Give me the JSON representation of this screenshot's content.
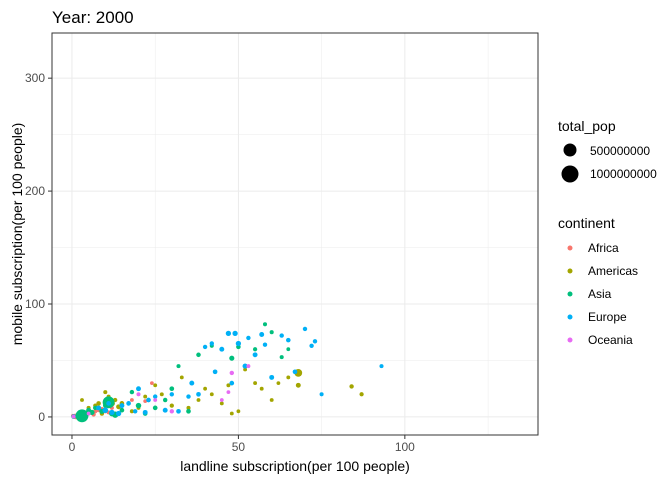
{
  "chart_data": {
    "type": "scatter",
    "title": "Year: 2000",
    "xlabel": "landline subscription(per 100 people)",
    "ylabel": "mobile subscription(per 100 people)",
    "xlim": [
      -6,
      140
    ],
    "ylim": [
      -16,
      340
    ],
    "xticks": [
      0,
      50,
      100
    ],
    "yticks": [
      0,
      100,
      200,
      300
    ],
    "grid": true,
    "legend_position": "right",
    "size_legend": {
      "title": "total_pop",
      "entries": [
        {
          "label": "500000000",
          "value": 500000000
        },
        {
          "label": "1000000000",
          "value": 1000000000
        }
      ]
    },
    "color_legend": {
      "title": "continent",
      "entries": [
        {
          "label": "Africa",
          "color": "#F8766D"
        },
        {
          "label": "Americas",
          "color": "#A3A500"
        },
        {
          "label": "Asia",
          "color": "#00BF7D"
        },
        {
          "label": "Europe",
          "color": "#00B0F6"
        },
        {
          "label": "Oceania",
          "color": "#E76BF3"
        }
      ]
    },
    "series": [
      {
        "continent": "Africa",
        "points": [
          [
            0.5,
            0.5,
            20
          ],
          [
            1,
            1,
            15
          ],
          [
            1.5,
            0.8,
            10
          ],
          [
            2,
            1.5,
            12
          ],
          [
            0.8,
            0.2,
            8
          ],
          [
            3,
            2,
            10
          ],
          [
            4,
            2.5,
            8
          ],
          [
            5,
            3,
            15
          ],
          [
            6,
            4,
            12
          ],
          [
            7,
            5,
            10
          ],
          [
            8,
            6,
            8
          ],
          [
            9,
            7,
            10
          ],
          [
            10,
            5,
            12
          ],
          [
            12,
            8,
            9
          ],
          [
            15,
            10,
            8
          ],
          [
            18,
            15,
            6
          ],
          [
            22,
            14,
            5
          ],
          [
            24,
            30,
            4
          ],
          [
            20,
            20,
            4
          ],
          [
            2.5,
            1.2,
            25
          ],
          [
            1.2,
            0.3,
            60
          ],
          [
            3.5,
            1.8,
            18
          ],
          [
            6.5,
            2.2,
            20
          ],
          [
            11,
            4,
            9
          ],
          [
            0.3,
            1,
            8
          ]
        ]
      },
      {
        "continent": "Americas",
        "points": [
          [
            3,
            15,
            6
          ],
          [
            5,
            8,
            10
          ],
          [
            7,
            10,
            15
          ],
          [
            8,
            12,
            25
          ],
          [
            10,
            22,
            10
          ],
          [
            11,
            18,
            8
          ],
          [
            13,
            15,
            15
          ],
          [
            15,
            12,
            30
          ],
          [
            18,
            5,
            10
          ],
          [
            20,
            8,
            6
          ],
          [
            22,
            18,
            6
          ],
          [
            25,
            28,
            6
          ],
          [
            27,
            20,
            8
          ],
          [
            30,
            10,
            15
          ],
          [
            33,
            35,
            6
          ],
          [
            35,
            8,
            10
          ],
          [
            38,
            15,
            6
          ],
          [
            40,
            25,
            5
          ],
          [
            42,
            20,
            6
          ],
          [
            45,
            12,
            6
          ],
          [
            47,
            28,
            8
          ],
          [
            48,
            3,
            6
          ],
          [
            50,
            5,
            5
          ],
          [
            52,
            42,
            6
          ],
          [
            55,
            30,
            6
          ],
          [
            57,
            25,
            6
          ],
          [
            60,
            15,
            6
          ],
          [
            62,
            30,
            4
          ],
          [
            65,
            35,
            6
          ],
          [
            68,
            28,
            40
          ],
          [
            68,
            39,
            280
          ],
          [
            84,
            27,
            20
          ],
          [
            87,
            20,
            15
          ],
          [
            12,
            12,
            110
          ],
          [
            9,
            3,
            20
          ],
          [
            14,
            9,
            40
          ]
        ]
      },
      {
        "continent": "Asia",
        "points": [
          [
            2,
            0.5,
            70
          ],
          [
            3,
            1,
            1270
          ],
          [
            3.5,
            2,
            200
          ],
          [
            4,
            3,
            80
          ],
          [
            5,
            6,
            40
          ],
          [
            6,
            4,
            60
          ],
          [
            7,
            8,
            25
          ],
          [
            9,
            5,
            60
          ],
          [
            10,
            10,
            25
          ],
          [
            12,
            3,
            90
          ],
          [
            13,
            2,
            130
          ],
          [
            15,
            6,
            30
          ],
          [
            18,
            22,
            20
          ],
          [
            20,
            10,
            70
          ],
          [
            22,
            3,
            30
          ],
          [
            25,
            8,
            30
          ],
          [
            28,
            15,
            20
          ],
          [
            30,
            25,
            30
          ],
          [
            32,
            45,
            10
          ],
          [
            35,
            5,
            30
          ],
          [
            38,
            55,
            25
          ],
          [
            42,
            63,
            10
          ],
          [
            48,
            52,
            50
          ],
          [
            50,
            62,
            25
          ],
          [
            55,
            60,
            15
          ],
          [
            58,
            82,
            10
          ],
          [
            60,
            75,
            10
          ],
          [
            63,
            53,
            10
          ],
          [
            65,
            60,
            5
          ],
          [
            0.5,
            0.2,
            20
          ],
          [
            11,
            13,
            1020
          ]
        ]
      },
      {
        "continent": "Europe",
        "points": [
          [
            8,
            8,
            40
          ],
          [
            10,
            6,
            80
          ],
          [
            11,
            12,
            30
          ],
          [
            12,
            4,
            60
          ],
          [
            14,
            3,
            60
          ],
          [
            15,
            10,
            40
          ],
          [
            17,
            12,
            30
          ],
          [
            19,
            5,
            20
          ],
          [
            20,
            25,
            40
          ],
          [
            22,
            4,
            40
          ],
          [
            23,
            15,
            30
          ],
          [
            25,
            18,
            20
          ],
          [
            28,
            6,
            40
          ],
          [
            30,
            20,
            20
          ],
          [
            32,
            5,
            30
          ],
          [
            35,
            18,
            20
          ],
          [
            36,
            30,
            40
          ],
          [
            38,
            20,
            30
          ],
          [
            40,
            62,
            20
          ],
          [
            42,
            65,
            20
          ],
          [
            43,
            40,
            30
          ],
          [
            45,
            60,
            40
          ],
          [
            47,
            74,
            60
          ],
          [
            48,
            30,
            30
          ],
          [
            49,
            74,
            60
          ],
          [
            50,
            65,
            60
          ],
          [
            52,
            45,
            50
          ],
          [
            53,
            70,
            20
          ],
          [
            55,
            55,
            40
          ],
          [
            57,
            73,
            40
          ],
          [
            58,
            64,
            20
          ],
          [
            60,
            35,
            40
          ],
          [
            63,
            72,
            20
          ],
          [
            65,
            68,
            25
          ],
          [
            67,
            40,
            30
          ],
          [
            70,
            78,
            20
          ],
          [
            72,
            63,
            20
          ],
          [
            73,
            67,
            20
          ],
          [
            75,
            20,
            10
          ],
          [
            93,
            45,
            10
          ],
          [
            0.5,
            0.5,
            20
          ]
        ]
      },
      {
        "continent": "Oceania",
        "points": [
          [
            20,
            20,
            8
          ],
          [
            25,
            15,
            6
          ],
          [
            30,
            5,
            20
          ],
          [
            45,
            15,
            5
          ],
          [
            47,
            22,
            5
          ],
          [
            48,
            39,
            20
          ],
          [
            53,
            45,
            8
          ],
          [
            0.5,
            0.3,
            5
          ],
          [
            5,
            3,
            5
          ]
        ]
      }
    ]
  }
}
